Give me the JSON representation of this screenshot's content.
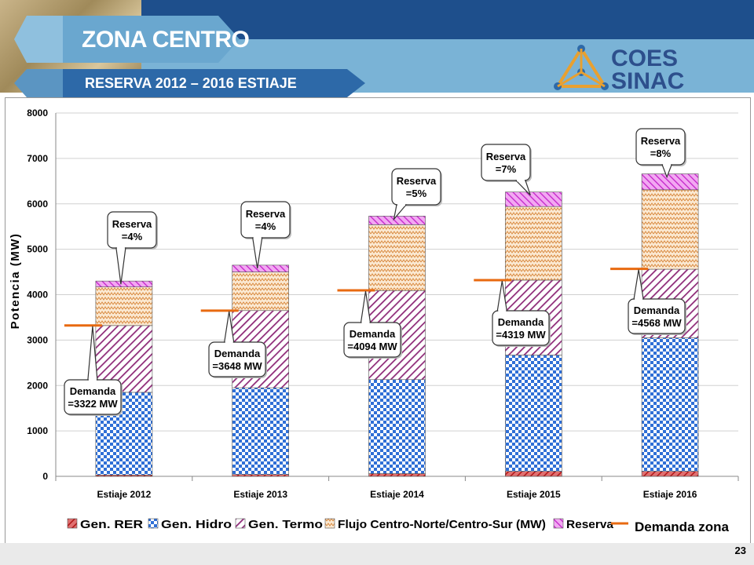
{
  "header": {
    "title": "ZONA CENTRO",
    "subtitle": "RESERVA 2012 – 2016 ESTIAJE",
    "logo_top": "COES",
    "logo_bottom": "SINAC"
  },
  "page_number": "23",
  "colors": {
    "rer": "#c0282d",
    "hidro": "#2f6fd6",
    "termo": "#9b2e82",
    "flujo": "#e8a35a",
    "reserva": "#d24fd6",
    "demanda": "#e86a10"
  },
  "chart_data": {
    "type": "bar",
    "stacked": true,
    "categories": [
      "Estiaje 2012",
      "Estiaje 2013",
      "Estiaje 2014",
      "Estiaje 2015",
      "Estiaje 2016"
    ],
    "series": [
      {
        "name": "Gen. RER",
        "values": [
          30,
          40,
          60,
          110,
          110
        ]
      },
      {
        "name": "Gen. Hidro",
        "values": [
          1820,
          1910,
          2070,
          2560,
          2940
        ]
      },
      {
        "name": "Gen. Termo",
        "values": [
          1470,
          1700,
          1960,
          1650,
          1510
        ]
      },
      {
        "name": "Flujo Centro-Norte/Centro-Sur (MW)",
        "values": [
          850,
          850,
          1450,
          1620,
          1750
        ]
      },
      {
        "name": "Reserva",
        "values": [
          130,
          150,
          190,
          320,
          350
        ]
      }
    ],
    "demanda": {
      "name": "Demanda zona",
      "values": [
        3322,
        3648,
        4094,
        4319,
        4568
      ]
    },
    "ylabel": "Potencia (MW)",
    "ylim": [
      0,
      8000
    ],
    "yticks": [
      "0",
      "1000",
      "2000",
      "3000",
      "4000",
      "5000",
      "6000",
      "7000",
      "8000"
    ],
    "grid": true,
    "legend_position": "bottom",
    "callouts": {
      "reserva": [
        "Reserva =4%",
        "Reserva =4%",
        "Reserva =5%",
        "Reserva =7%",
        "Reserva =8%"
      ],
      "demanda": [
        "Demanda =3322 MW",
        "Demanda =3648 MW",
        "Demanda =4094 MW",
        "Demanda =4319 MW",
        "Demanda =4568 MW"
      ]
    }
  }
}
